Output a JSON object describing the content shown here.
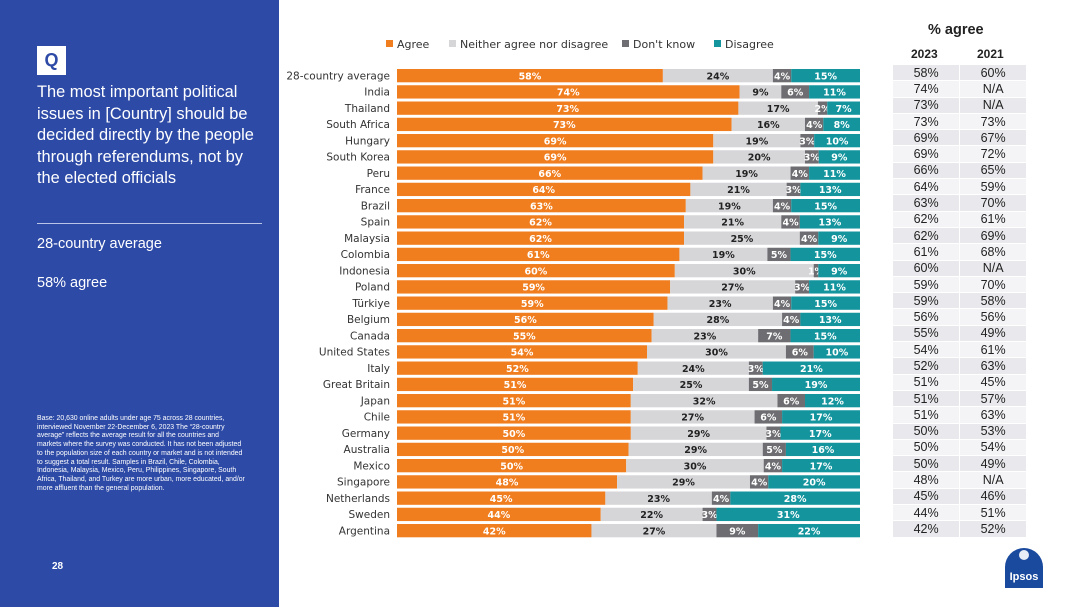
{
  "sidebar": {
    "badge": "Q",
    "question": "The most important political issues in [Country] should be decided directly by the people through referendums, not by the elected officials",
    "average_label": "28-country average",
    "average_value": "58% agree",
    "base_note": "Base: 20,630 online adults under age 75 across 28 countries, interviewed November 22-December 6, 2023\nThe “28-country average” reflects the average result for all the countries and markets where the survey was conducted. It has not been adjusted to the population size of each country or market and is not intended to suggest a total result. Samples in Brazil, Chile, Colombia, Indonesia, Malaysia, Mexico, Peru, Philippines, Singapore, South Africa, Thailand, and Turkey are more urban, more educated, and/or more affluent than the general population.",
    "page_number": "28"
  },
  "colors": {
    "sidebar_bg": "#2d4aa6",
    "agree": "#f07d1e",
    "neither": "#d6d6d9",
    "dont_know": "#6e6e72",
    "disagree": "#14959e",
    "logo": "#1a4a9e"
  },
  "table": {
    "title": "% agree",
    "col_2023": "2023",
    "col_2021": "2021"
  },
  "logo": {
    "text": "Ipsos"
  },
  "chart_data": {
    "type": "bar",
    "orientation": "horizontal",
    "stacked": "100%",
    "legend_position": "top",
    "categories": [
      "28-country average",
      "India",
      "Thailand",
      "South Africa",
      "Hungary",
      "South Korea",
      "Peru",
      "France",
      "Brazil",
      "Spain",
      "Malaysia",
      "Colombia",
      "Indonesia",
      "Poland",
      "Türkiye",
      "Belgium",
      "Canada",
      "United States",
      "Italy",
      "Great Britain",
      "Japan",
      "Chile",
      "Germany",
      "Australia",
      "Mexico",
      "Singapore",
      "Netherlands",
      "Sweden",
      "Argentina"
    ],
    "series": [
      {
        "name": "Agree",
        "color": "#f07d1e",
        "values": [
          58,
          74,
          73,
          73,
          69,
          69,
          66,
          64,
          63,
          62,
          62,
          61,
          60,
          59,
          59,
          56,
          55,
          54,
          52,
          51,
          51,
          51,
          50,
          50,
          50,
          48,
          45,
          44,
          42
        ]
      },
      {
        "name": "Neither agree nor disagree",
        "color": "#d6d6d9",
        "values": [
          24,
          9,
          17,
          16,
          19,
          20,
          19,
          21,
          19,
          21,
          25,
          19,
          30,
          27,
          23,
          28,
          23,
          30,
          24,
          25,
          32,
          27,
          29,
          29,
          30,
          29,
          23,
          22,
          27
        ]
      },
      {
        "name": "Don't know",
        "color": "#6e6e72",
        "values": [
          4,
          6,
          2,
          4,
          3,
          3,
          4,
          3,
          4,
          4,
          4,
          5,
          1,
          3,
          4,
          4,
          7,
          6,
          3,
          5,
          6,
          6,
          3,
          5,
          4,
          4,
          4,
          3,
          9
        ]
      },
      {
        "name": "Disagree",
        "color": "#14959e",
        "values": [
          15,
          11,
          7,
          8,
          10,
          9,
          11,
          13,
          15,
          13,
          9,
          15,
          9,
          11,
          15,
          13,
          15,
          10,
          21,
          19,
          12,
          17,
          17,
          16,
          17,
          20,
          28,
          31,
          22
        ]
      }
    ],
    "segment_labels": [
      [
        "58%",
        "24%",
        "4%",
        "15%"
      ],
      [
        "74%",
        "9%",
        "6%",
        "11%"
      ],
      [
        "73%",
        "17%",
        "2%",
        "7%"
      ],
      [
        "73%",
        "16%",
        "4%",
        "8%"
      ],
      [
        "69%",
        "19%",
        "3%",
        "10%"
      ],
      [
        "69%",
        "20%",
        "3%",
        "9%"
      ],
      [
        "66%",
        "19%",
        "4%",
        "11%"
      ],
      [
        "64%",
        "21%",
        "3%",
        "13%"
      ],
      [
        "63%",
        "19%",
        "4%",
        "15%"
      ],
      [
        "62%",
        "21%",
        "4%",
        "13%"
      ],
      [
        "62%",
        "25%",
        "4%",
        "9%"
      ],
      [
        "61%",
        "19%",
        "5%",
        "15%"
      ],
      [
        "60%",
        "30%",
        "1%",
        "9%"
      ],
      [
        "59%",
        "27%",
        "3%",
        "11%"
      ],
      [
        "59%",
        "23%",
        "4%",
        "15%"
      ],
      [
        "56%",
        "28%",
        "4%",
        "13%"
      ],
      [
        "55%",
        "23%",
        "7%",
        "15%"
      ],
      [
        "54%",
        "30%",
        "6%",
        "10%"
      ],
      [
        "52%",
        "24%",
        "3%",
        "21%"
      ],
      [
        "51%",
        "25%",
        "5%",
        "19%"
      ],
      [
        "51%",
        "32%",
        "6%",
        "12%"
      ],
      [
        "51%",
        "27%",
        "6%",
        "17%"
      ],
      [
        "50%",
        "29%",
        "3%",
        "17%"
      ],
      [
        "50%",
        "29%",
        "5%",
        "16%"
      ],
      [
        "50%",
        "30%",
        "4%",
        "17%"
      ],
      [
        "48%",
        "29%",
        "4%",
        "20%"
      ],
      [
        "45%",
        "23%",
        "4%",
        "28%"
      ],
      [
        "44%",
        "22%",
        "3%",
        "31%"
      ],
      [
        "42%",
        "27%",
        "9%",
        "22%"
      ]
    ],
    "agree_2023": [
      "58%",
      "74%",
      "73%",
      "73%",
      "69%",
      "69%",
      "66%",
      "64%",
      "63%",
      "62%",
      "62%",
      "61%",
      "60%",
      "59%",
      "59%",
      "56%",
      "55%",
      "54%",
      "52%",
      "51%",
      "51%",
      "51%",
      "50%",
      "50%",
      "50%",
      "48%",
      "45%",
      "44%",
      "42%"
    ],
    "agree_2021": [
      "60%",
      "N/A",
      "N/A",
      "73%",
      "67%",
      "72%",
      "65%",
      "59%",
      "70%",
      "61%",
      "69%",
      "68%",
      "N/A",
      "70%",
      "58%",
      "56%",
      "49%",
      "61%",
      "63%",
      "45%",
      "57%",
      "63%",
      "53%",
      "54%",
      "49%",
      "N/A",
      "46%",
      "51%",
      "52%"
    ]
  }
}
